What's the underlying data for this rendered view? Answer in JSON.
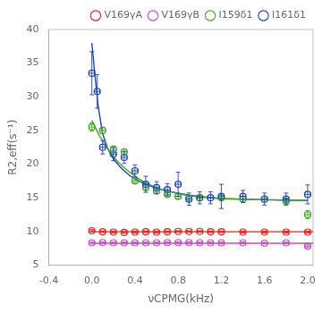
{
  "chart_data": {
    "type": "scatter",
    "xlabel": "νCPMG(kHz)",
    "ylabel": "R2,eff(s⁻¹)",
    "xlim": [
      -0.4,
      2.05
    ],
    "ylim": [
      5,
      40
    ],
    "xticks": [
      -0.4,
      {
        "value": 0,
        "label": "0.0"
      },
      0.4,
      0.8,
      1.2,
      1.6,
      {
        "value": 2,
        "label": "2.0"
      }
    ],
    "yticks": [
      5,
      10,
      15,
      20,
      25,
      30,
      35,
      40
    ],
    "grid": false,
    "legend": "upper right",
    "series": [
      {
        "name": "V169γA",
        "color": "#e8201a",
        "marker": "circle",
        "x": [
          0.0,
          0.1,
          0.2,
          0.3,
          0.4,
          0.5,
          0.6,
          0.7,
          0.8,
          0.9,
          1.0,
          1.1,
          1.2,
          1.4,
          1.6,
          1.8,
          2.0
        ],
        "values": [
          10.1,
          9.95,
          9.9,
          9.85,
          9.9,
          9.95,
          9.9,
          9.95,
          10.0,
          10.0,
          10.0,
          9.95,
          9.95,
          9.9,
          9.9,
          9.9,
          9.9
        ],
        "yerr": [
          0.18,
          0.12,
          0.12,
          0.12,
          0.12,
          0.12,
          0.12,
          0.12,
          0.12,
          0.12,
          0.12,
          0.12,
          0.12,
          0.12,
          0.12,
          0.12,
          0.12
        ],
        "xerr": 0.025,
        "fit_x": [
          0,
          2.05
        ],
        "fit_values": [
          9.95,
          9.95
        ]
      },
      {
        "name": "V169γB",
        "color": "#c050c0",
        "marker": "circle",
        "x": [
          0.0,
          0.1,
          0.2,
          0.3,
          0.4,
          0.5,
          0.6,
          0.7,
          0.8,
          0.9,
          1.0,
          1.1,
          1.2,
          1.4,
          1.6,
          1.8,
          2.0
        ],
        "values": [
          8.3,
          8.35,
          8.3,
          8.3,
          8.3,
          8.3,
          8.3,
          8.35,
          8.35,
          8.35,
          8.3,
          8.3,
          8.3,
          8.3,
          8.25,
          8.3,
          7.8
        ],
        "yerr": [
          0.18,
          0.12,
          0.12,
          0.12,
          0.12,
          0.12,
          0.12,
          0.12,
          0.12,
          0.12,
          0.12,
          0.12,
          0.12,
          0.12,
          0.12,
          0.12,
          0.2
        ],
        "xerr": 0.025,
        "fit_x": [
          0,
          2.05
        ],
        "fit_values": [
          8.25,
          8.25
        ]
      },
      {
        "name": "I159δ1",
        "color": "#40a820",
        "marker": "circle",
        "x": [
          0.0,
          0.1,
          0.2,
          0.3,
          0.4,
          0.5,
          0.6,
          0.7,
          0.8,
          0.9,
          1.0,
          1.2,
          1.4,
          1.6,
          1.8,
          2.0
        ],
        "values": [
          25.5,
          25.0,
          22.2,
          21.8,
          17.5,
          16.5,
          16.0,
          15.5,
          15.2,
          14.9,
          15.0,
          15.0,
          14.8,
          14.8,
          14.5,
          12.5
        ],
        "yerr": [
          0.6,
          0.5,
          0.5,
          0.5,
          0.35,
          0.35,
          0.35,
          0.35,
          0.35,
          0.35,
          0.35,
          0.35,
          0.35,
          0.35,
          0.35,
          0.6
        ],
        "xerr": 0.025,
        "fit_x": [
          0.0,
          0.03,
          0.07,
          0.12,
          0.18,
          0.25,
          0.32,
          0.4,
          0.5,
          0.6,
          0.7,
          0.8,
          0.9,
          1.0,
          1.2,
          1.4,
          1.6,
          1.8,
          2.0
        ],
        "fit_values": [
          26.5,
          25.5,
          24.2,
          23.0,
          21.5,
          20.2,
          19.2,
          18.2,
          17.2,
          16.5,
          16.0,
          15.6,
          15.3,
          15.1,
          14.85,
          14.75,
          14.7,
          14.65,
          14.6
        ]
      },
      {
        "name": "I161δ1",
        "color": "#2040c8",
        "marker": "circle",
        "x": [
          0.0,
          0.05,
          0.1,
          0.2,
          0.3,
          0.4,
          0.5,
          0.6,
          0.7,
          0.8,
          0.9,
          1.0,
          1.1,
          1.2,
          1.4,
          1.6,
          1.8,
          2.0
        ],
        "values": [
          33.5,
          30.8,
          22.5,
          21.5,
          21.0,
          19.0,
          17.0,
          16.5,
          16.2,
          17.0,
          14.8,
          15.0,
          15.0,
          15.2,
          15.2,
          14.8,
          14.8,
          15.5
        ],
        "yerr": [
          3.2,
          2.5,
          1.0,
          1.0,
          0.9,
          0.9,
          1.2,
          0.9,
          0.9,
          1.8,
          0.9,
          0.9,
          0.9,
          1.8,
          0.9,
          0.9,
          0.9,
          1.4
        ],
        "xerr": 0.025,
        "fit_x": [
          0.0,
          0.03,
          0.06,
          0.1,
          0.15,
          0.2,
          0.25,
          0.3,
          0.35,
          0.4,
          0.5,
          0.6,
          0.7,
          0.8,
          0.9,
          1.0,
          1.2,
          1.4,
          1.6,
          1.8,
          2.0
        ],
        "fit_values": [
          38.0,
          33.0,
          28.5,
          24.5,
          22.2,
          20.8,
          19.8,
          19.0,
          18.3,
          17.8,
          17.0,
          16.4,
          16.0,
          15.7,
          15.4,
          15.2,
          14.9,
          14.8,
          14.7,
          14.65,
          14.6
        ]
      }
    ]
  }
}
